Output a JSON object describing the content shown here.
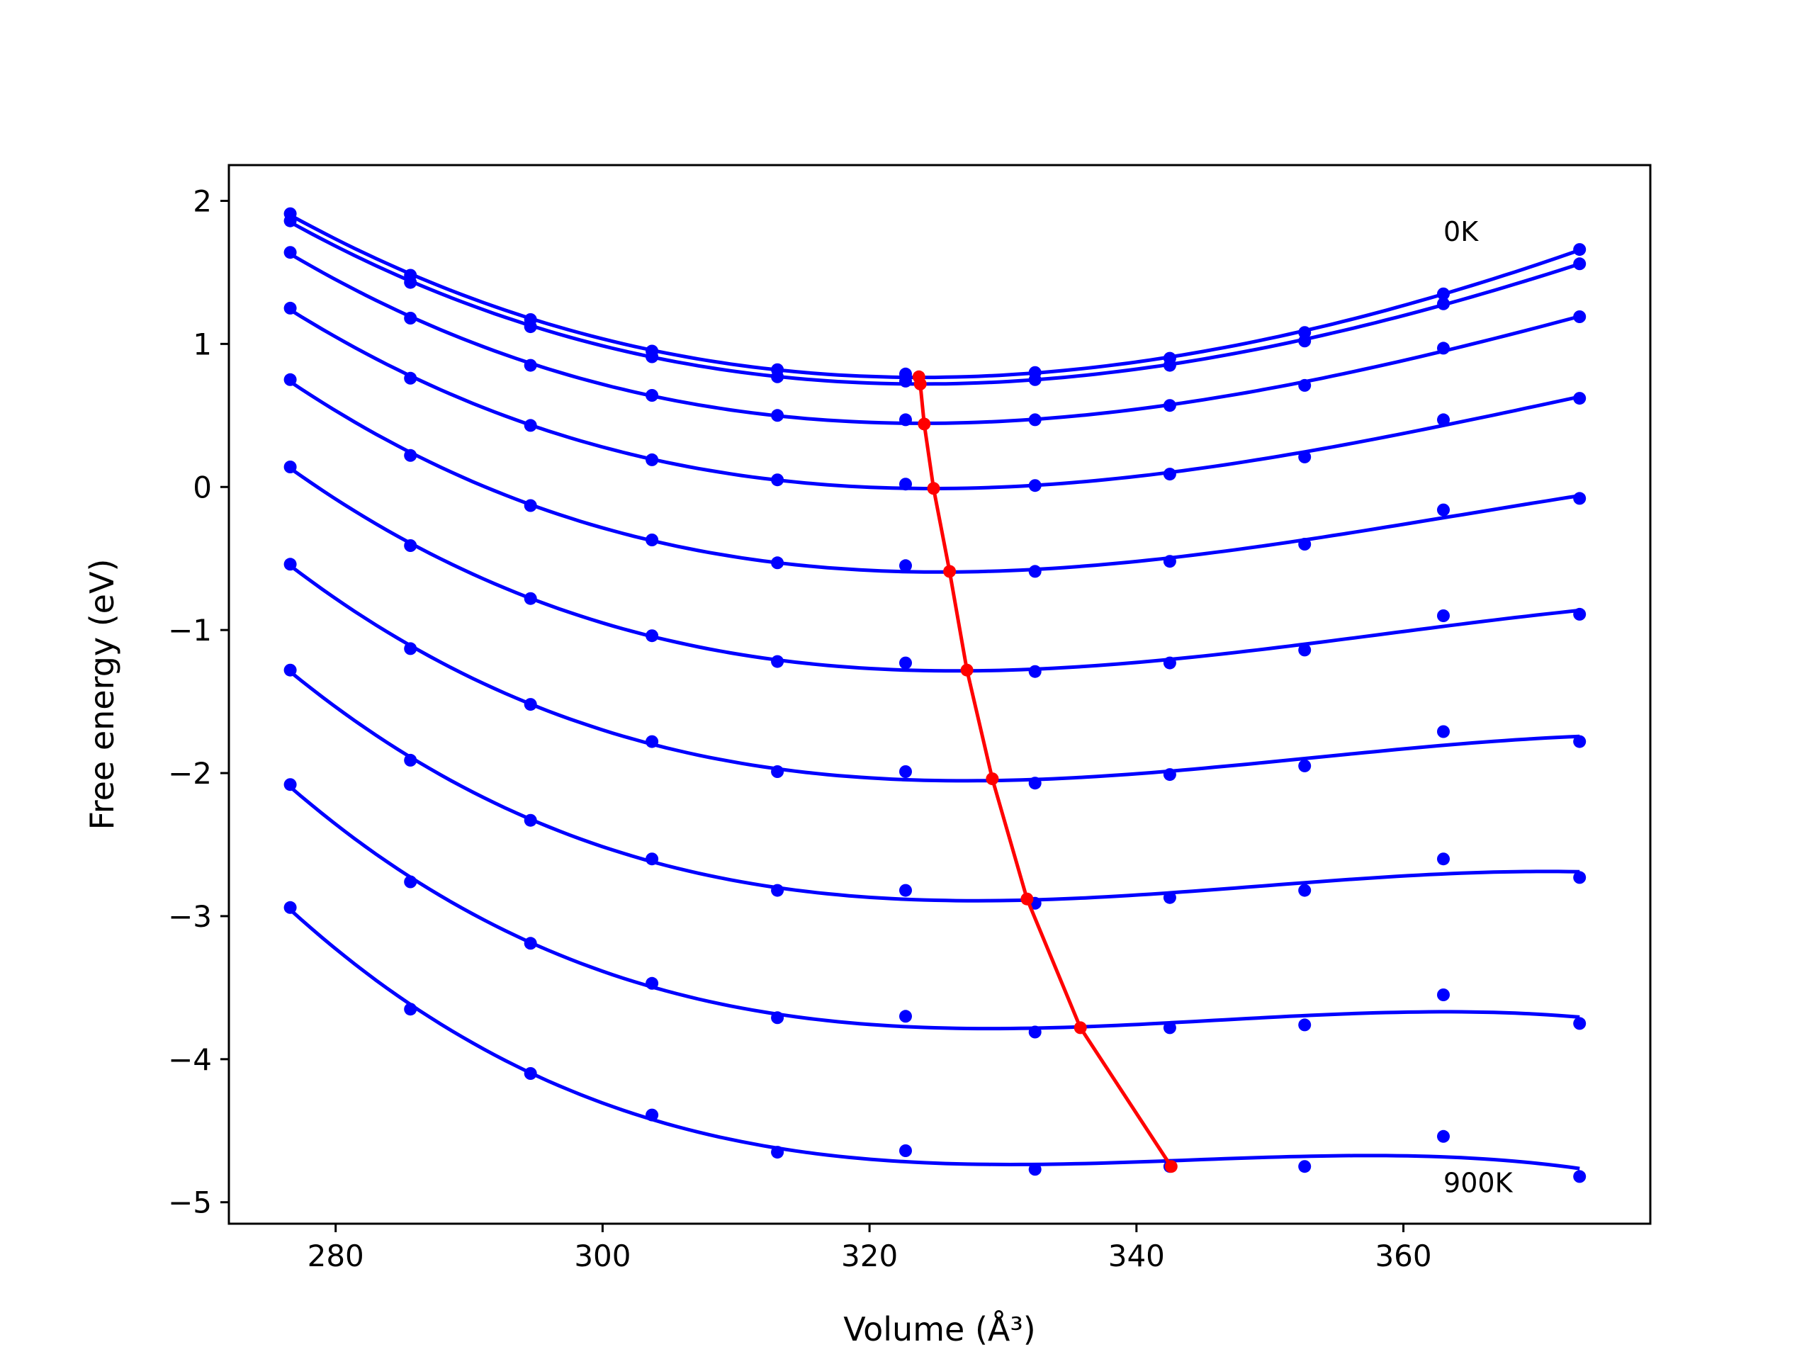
{
  "chart_data": {
    "type": "line",
    "title": "",
    "xlabel": "Volume (Å³)",
    "ylabel": "Free energy (eV)",
    "xlim": [
      272,
      378.5
    ],
    "ylim": [
      -5.15,
      2.25
    ],
    "xticks": [
      280,
      300,
      320,
      340,
      360
    ],
    "yticks": [
      2,
      1,
      0,
      -1,
      -2,
      -3,
      -4,
      -5
    ],
    "xtick_labels": [
      "280",
      "300",
      "320",
      "340",
      "360"
    ],
    "ytick_labels": [
      "2",
      "1",
      "0",
      "−1",
      "−2",
      "−3",
      "−4",
      "−5"
    ],
    "grid": false,
    "legend": "none",
    "colors": {
      "fit": "#0000ff",
      "points": "#0000ff",
      "minimum": "#ff0000"
    },
    "annotations": [
      {
        "text": "0K",
        "x": 363,
        "y": 1.72
      },
      {
        "text": "900K",
        "x": 363,
        "y": -4.93
      }
    ],
    "volumes": [
      276.6,
      285.6,
      294.6,
      303.7,
      313.1,
      322.7,
      332.4,
      342.5,
      352.6,
      363.0,
      373.2
    ],
    "series": [
      {
        "energies": [
          1.91,
          1.48,
          1.17,
          0.95,
          0.82,
          0.79,
          0.8,
          0.9,
          1.08,
          1.35,
          1.66
        ],
        "fit_min": [
          323.7,
          0.77
        ]
      },
      {
        "energies": [
          1.86,
          1.43,
          1.12,
          0.91,
          0.77,
          0.74,
          0.75,
          0.85,
          1.02,
          1.28,
          1.56
        ],
        "fit_min": [
          323.8,
          0.72
        ]
      },
      {
        "energies": [
          1.64,
          1.18,
          0.85,
          0.64,
          0.5,
          0.47,
          0.47,
          0.57,
          0.71,
          0.97,
          1.19
        ],
        "fit_min": [
          324.1,
          0.44
        ]
      },
      {
        "energies": [
          1.25,
          0.76,
          0.43,
          0.19,
          0.05,
          0.02,
          0.01,
          0.09,
          0.21,
          0.47,
          0.62
        ],
        "fit_min": [
          324.8,
          -0.01
        ]
      },
      {
        "energies": [
          0.75,
          0.22,
          -0.13,
          -0.37,
          -0.53,
          -0.55,
          -0.59,
          -0.52,
          -0.4,
          -0.16,
          -0.08
        ],
        "fit_min": [
          326.0,
          -0.59
        ]
      },
      {
        "energies": [
          0.14,
          -0.41,
          -0.78,
          -1.04,
          -1.22,
          -1.23,
          -1.29,
          -1.23,
          -1.14,
          -0.9,
          -0.89
        ],
        "fit_min": [
          327.3,
          -1.28
        ]
      },
      {
        "energies": [
          -0.54,
          -1.13,
          -1.52,
          -1.78,
          -1.99,
          -1.99,
          -2.07,
          -2.01,
          -1.95,
          -1.71,
          -1.78
        ],
        "fit_min": [
          329.2,
          -2.04
        ]
      },
      {
        "energies": [
          -1.28,
          -1.91,
          -2.33,
          -2.6,
          -2.82,
          -2.82,
          -2.91,
          -2.87,
          -2.82,
          -2.6,
          -2.73
        ],
        "fit_min": [
          331.8,
          -2.88
        ]
      },
      {
        "energies": [
          -2.08,
          -2.76,
          -3.19,
          -3.47,
          -3.71,
          -3.7,
          -3.81,
          -3.78,
          -3.76,
          -3.55,
          -3.75
        ],
        "fit_min": [
          335.8,
          -3.78
        ]
      },
      {
        "energies": [
          -2.94,
          -3.65,
          -4.1,
          -4.39,
          -4.65,
          -4.64,
          -4.77,
          -4.75,
          -4.75,
          -4.54,
          -4.82
        ],
        "fit_min": [
          342.6,
          -4.75
        ]
      }
    ]
  }
}
